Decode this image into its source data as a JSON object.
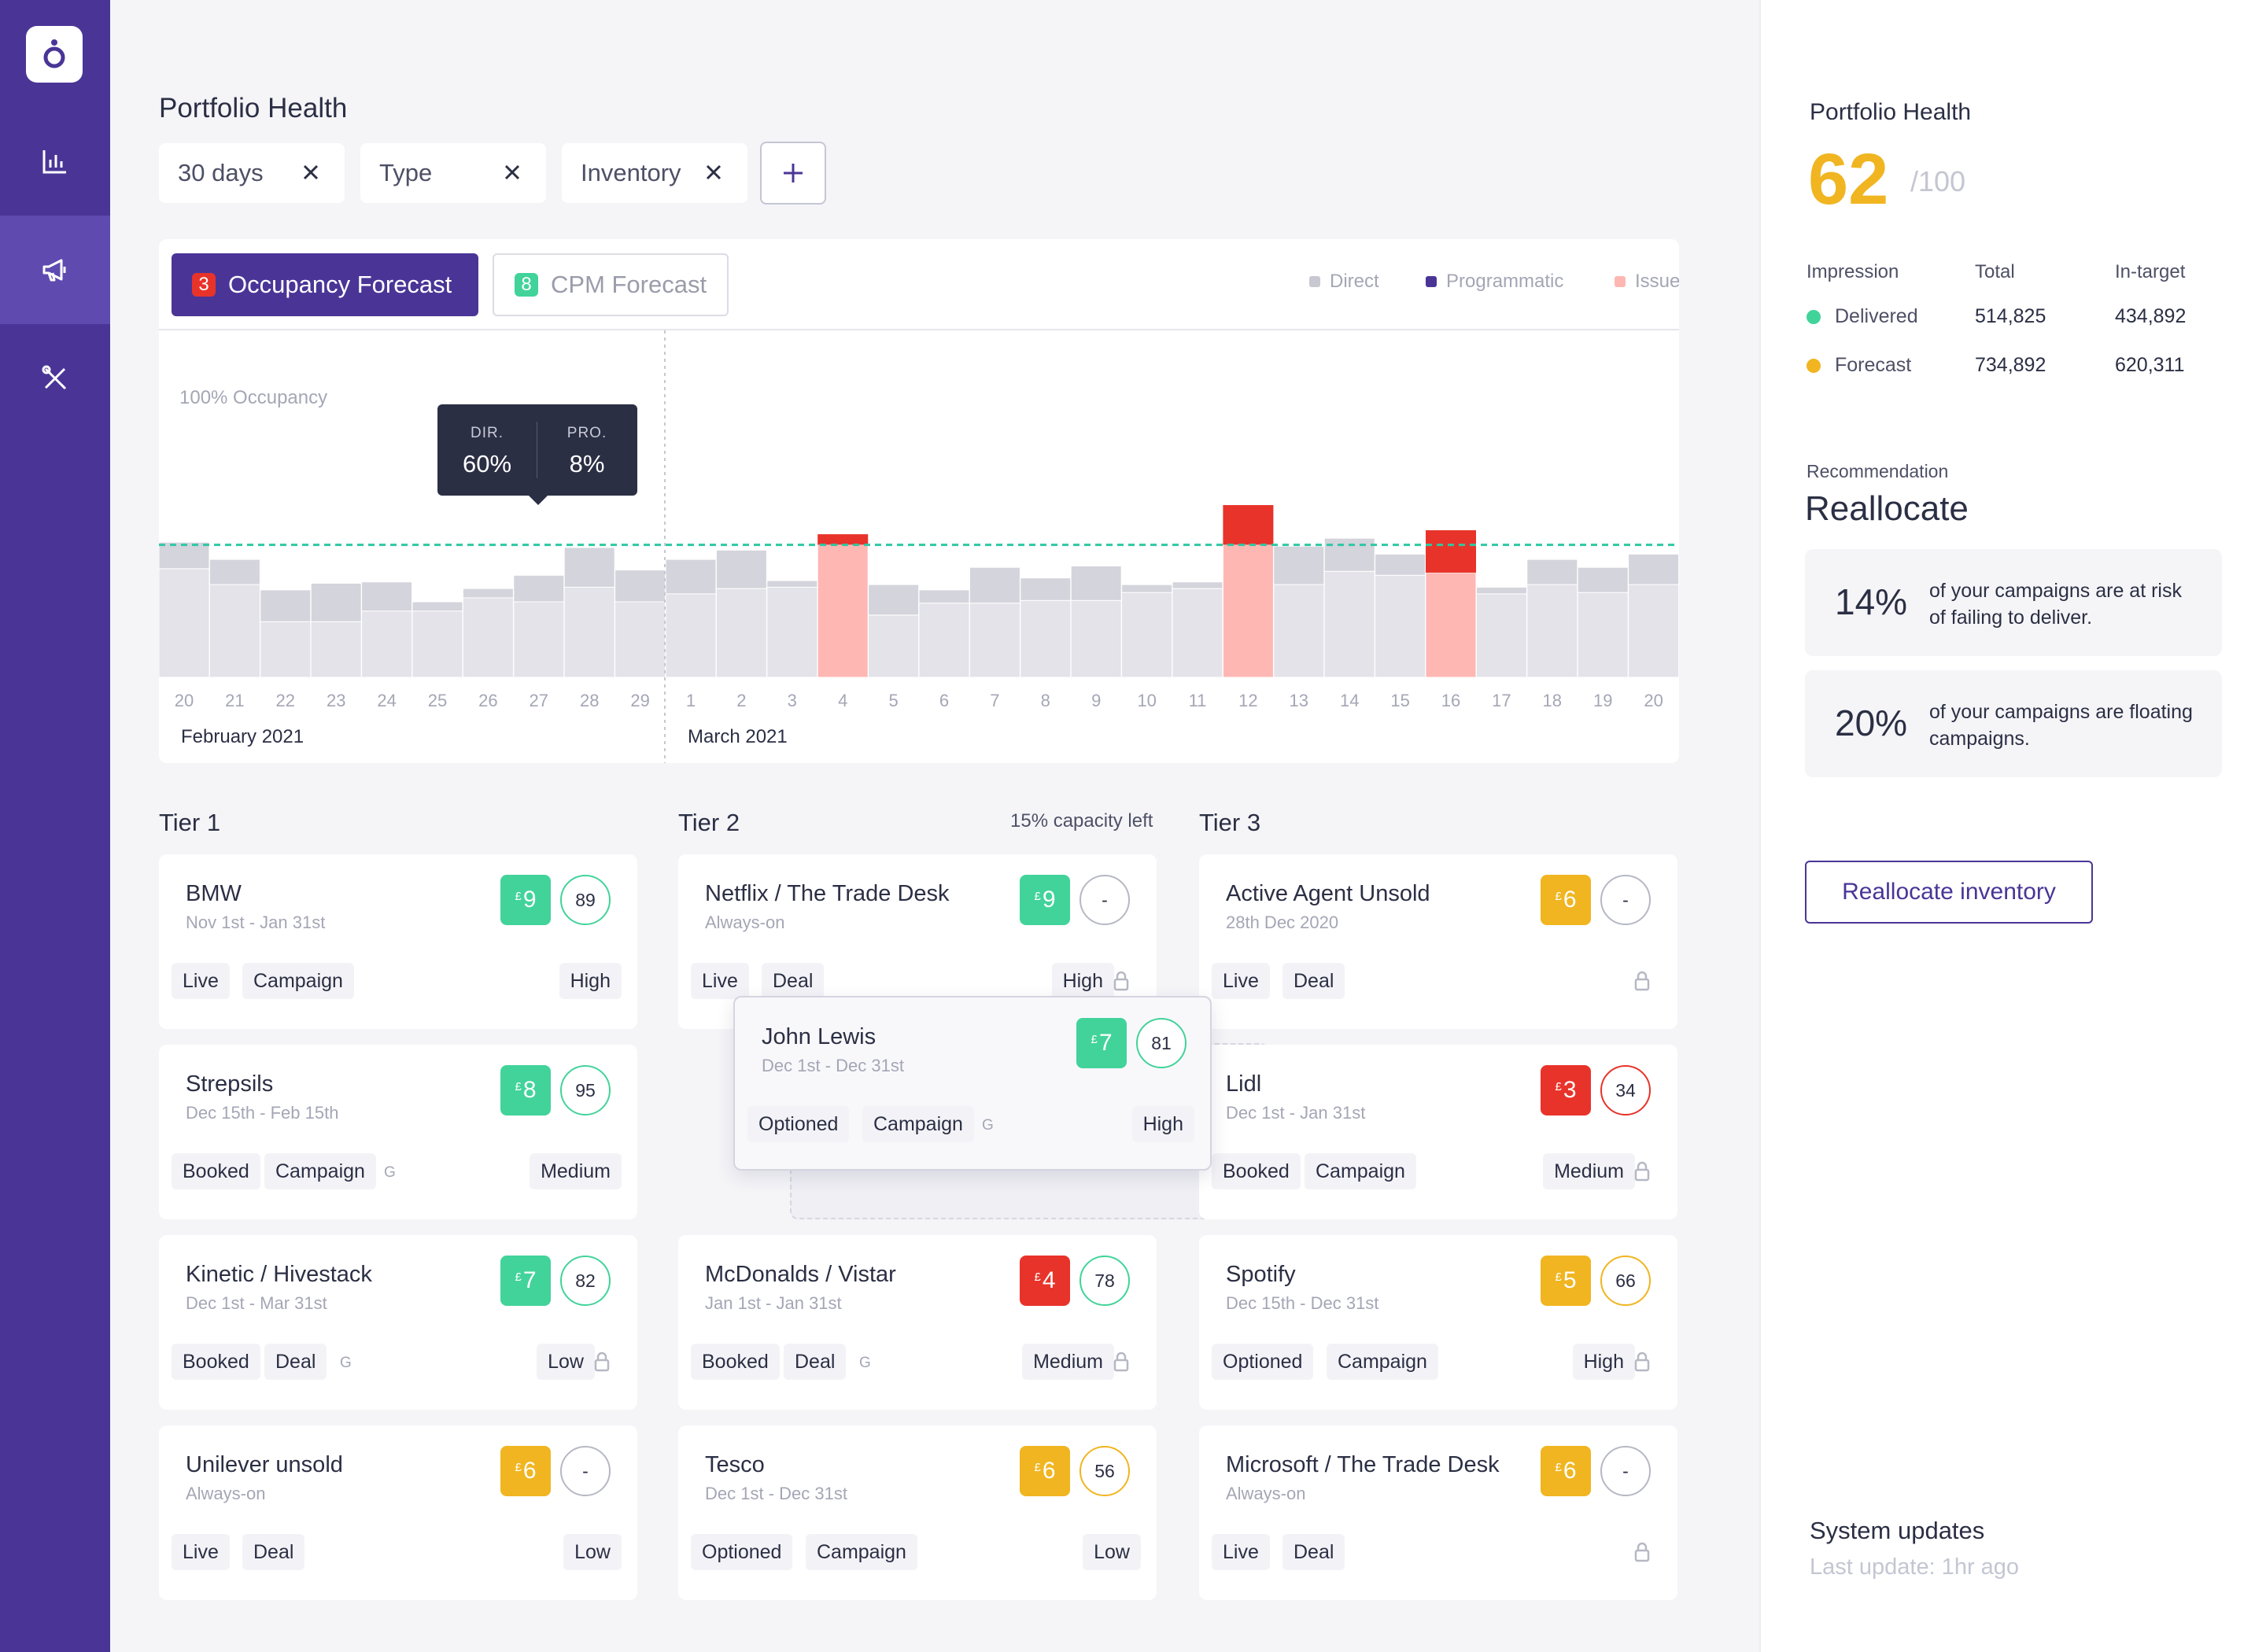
{
  "nav": {
    "items": [
      "logo-icon",
      "bar-chart-icon",
      "megaphone-icon",
      "tools-icon"
    ],
    "active": "megaphone-icon"
  },
  "page": {
    "title": "Portfolio Health"
  },
  "filters": {
    "chips": [
      "30 days",
      "Type",
      "Inventory"
    ],
    "add_label": "+"
  },
  "chart_card": {
    "tabs": [
      {
        "badge": "3",
        "label": "Occupancy Forecast",
        "active": true
      },
      {
        "badge": "8",
        "label": "CPM Forecast",
        "active": false
      }
    ],
    "legend": [
      "Direct",
      "Programmatic",
      "Issues"
    ],
    "occupancy_label": "100% Occupancy",
    "tooltip": {
      "dir_label": "DIR.",
      "dir_value": "60%",
      "pro_label": "PRO.",
      "pro_value": "8%"
    }
  },
  "chart_data": {
    "type": "bar",
    "stacked": true,
    "threshold_label": "100% Occupancy",
    "threshold_value": 100,
    "ylim": [
      0,
      133
    ],
    "categories": [
      "20",
      "21",
      "22",
      "23",
      "24",
      "25",
      "26",
      "27",
      "28",
      "29",
      "1",
      "2",
      "3",
      "4",
      "5",
      "6",
      "7",
      "8",
      "9",
      "10",
      "11",
      "12",
      "13",
      "14",
      "15",
      "16",
      "17",
      "18",
      "19",
      "20"
    ],
    "month_labels": [
      {
        "label": "February 2021",
        "from_index": 0
      },
      {
        "label": "March 2021",
        "from_index": 10
      }
    ],
    "series": [
      {
        "name": "Direct",
        "values": [
          82,
          70,
          42,
          42,
          50,
          50,
          60,
          57,
          68,
          57,
          63,
          67,
          68,
          100,
          47,
          56,
          56,
          58,
          58,
          64,
          67,
          100,
          70,
          80,
          77,
          79,
          63,
          70,
          64,
          70
        ]
      },
      {
        "name": "Programmatic",
        "values": [
          20,
          19,
          24,
          29,
          22,
          7,
          7,
          20,
          30,
          24,
          26,
          29,
          5,
          0,
          23,
          10,
          27,
          17,
          26,
          6,
          5,
          0,
          29,
          25,
          16,
          0,
          5,
          19,
          19,
          23
        ]
      },
      {
        "name": "Issues",
        "values": [
          0,
          0,
          0,
          0,
          0,
          0,
          0,
          0,
          0,
          0,
          0,
          0,
          0,
          8,
          0,
          0,
          0,
          0,
          0,
          0,
          0,
          30,
          0,
          0,
          0,
          32,
          0,
          0,
          0,
          0
        ]
      }
    ],
    "colors": {
      "Direct": "#e3e3e9",
      "Programmatic": "#d4d4dc",
      "IssueBase": "#feb7b3",
      "Issues": "#e8332a"
    }
  },
  "tiers": [
    {
      "title": "Tier 1",
      "capacity": "",
      "cards": [
        {
          "name": "BMW",
          "date": "Nov 1st - Jan 31st",
          "cpm": "9",
          "cpm_color": "#42d39a",
          "score": "89",
          "score_color": "#42d39a",
          "tags": [
            "Live",
            "Campaign"
          ],
          "g": false,
          "priority": "High",
          "lock": false
        },
        {
          "name": "Strepsils",
          "date": "Dec 15th - Feb 15th",
          "cpm": "8",
          "cpm_color": "#42d39a",
          "score": "95",
          "score_color": "#42d39a",
          "tags": [
            "Booked",
            "Campaign"
          ],
          "g": true,
          "priority": "Medium",
          "lock": false
        },
        {
          "name": "Kinetic / Hivestack",
          "date": "Dec 1st - Mar 31st",
          "cpm": "7",
          "cpm_color": "#42d39a",
          "score": "82",
          "score_color": "#42d39a",
          "tags": [
            "Booked",
            "Deal"
          ],
          "g": true,
          "priority": "Low",
          "lock": true
        },
        {
          "name": "Unilever unsold",
          "date": "Always-on",
          "cpm": "6",
          "cpm_color": "#f0b521",
          "score": "-",
          "score_color": "#b6b8c4",
          "tags": [
            "Live",
            "Deal"
          ],
          "g": false,
          "priority": "Low",
          "lock": false
        }
      ]
    },
    {
      "title": "Tier 2",
      "capacity": "15% capacity left",
      "cards": [
        {
          "name": "Netflix / The Trade Desk",
          "date": "Always-on",
          "cpm": "9",
          "cpm_color": "#42d39a",
          "score": "-",
          "score_color": "#b6b8c4",
          "tags": [
            "Live",
            "Deal"
          ],
          "g": false,
          "priority": "High",
          "lock": true
        },
        {
          "name": "McDonalds / Vistar",
          "date": "Jan 1st - Jan 31st",
          "cpm": "4",
          "cpm_color": "#e8332a",
          "score": "78",
          "score_color": "#42d39a",
          "tags": [
            "Booked",
            "Deal"
          ],
          "g": true,
          "priority": "Medium",
          "lock": true
        },
        {
          "name": "Tesco",
          "date": "Dec 1st - Dec 31st",
          "cpm": "6",
          "cpm_color": "#f0b521",
          "score": "56",
          "score_color": "#f0b521",
          "tags": [
            "Optioned",
            "Campaign"
          ],
          "g": false,
          "priority": "Low",
          "lock": false
        }
      ]
    },
    {
      "title": "Tier 3",
      "capacity": "",
      "cards": [
        {
          "name": "Active Agent Unsold",
          "date": "28th Dec 2020",
          "cpm": "6",
          "cpm_color": "#f0b521",
          "score": "-",
          "score_color": "#b6b8c4",
          "tags": [
            "Live",
            "Deal"
          ],
          "g": false,
          "priority": "",
          "lock": true
        },
        {
          "name": "Lidl",
          "date": "Dec 1st - Jan 31st",
          "cpm": "3",
          "cpm_color": "#e8332a",
          "score": "34",
          "score_color": "#e8332a",
          "tags": [
            "Booked",
            "Campaign"
          ],
          "g": false,
          "priority": "Medium",
          "lock": true
        },
        {
          "name": "Spotify",
          "date": "Dec 15th - Dec 31st",
          "cpm": "5",
          "cpm_color": "#f0b521",
          "score": "66",
          "score_color": "#f0b521",
          "tags": [
            "Optioned",
            "Campaign"
          ],
          "g": false,
          "priority": "High",
          "lock": true
        },
        {
          "name": "Microsoft / The Trade Desk",
          "date": "Always-on",
          "cpm": "6",
          "cpm_color": "#f0b521",
          "score": "-",
          "score_color": "#b6b8c4",
          "tags": [
            "Live",
            "Deal"
          ],
          "g": false,
          "priority": "",
          "lock": true
        }
      ]
    }
  ],
  "dragging_card": {
    "name": "John Lewis",
    "date": "Dec 1st - Dec 31st",
    "cpm": "7",
    "cpm_color": "#42d39a",
    "score": "81",
    "score_color": "#42d39a",
    "tags": [
      "Optioned",
      "Campaign"
    ],
    "g": true,
    "priority": "High",
    "lock": false
  },
  "currency_symbol": "£",
  "g_mark": "G",
  "right_panel": {
    "title": "Portfolio Health",
    "score": "62",
    "score_max": "/100",
    "table": {
      "headers": [
        "Impression",
        "Total",
        "In-target"
      ],
      "rows": [
        {
          "label": "Delivered",
          "color": "#42d39a",
          "total": "514,825",
          "in_target": "434,892"
        },
        {
          "label": "Forecast",
          "color": "#f0b521",
          "total": "734,892",
          "in_target": "620,311"
        }
      ]
    },
    "recommendation_label": "Recommendation",
    "recommendation": "Reallocate",
    "stats": [
      {
        "pct": "14%",
        "text": "of your campaigns are at risk of failing to deliver."
      },
      {
        "pct": "20%",
        "text": "of your campaigns are floating campaigns."
      }
    ],
    "button_label": "Reallocate inventory",
    "system_updates": "System updates",
    "last_update": "Last update: 1hr ago"
  }
}
